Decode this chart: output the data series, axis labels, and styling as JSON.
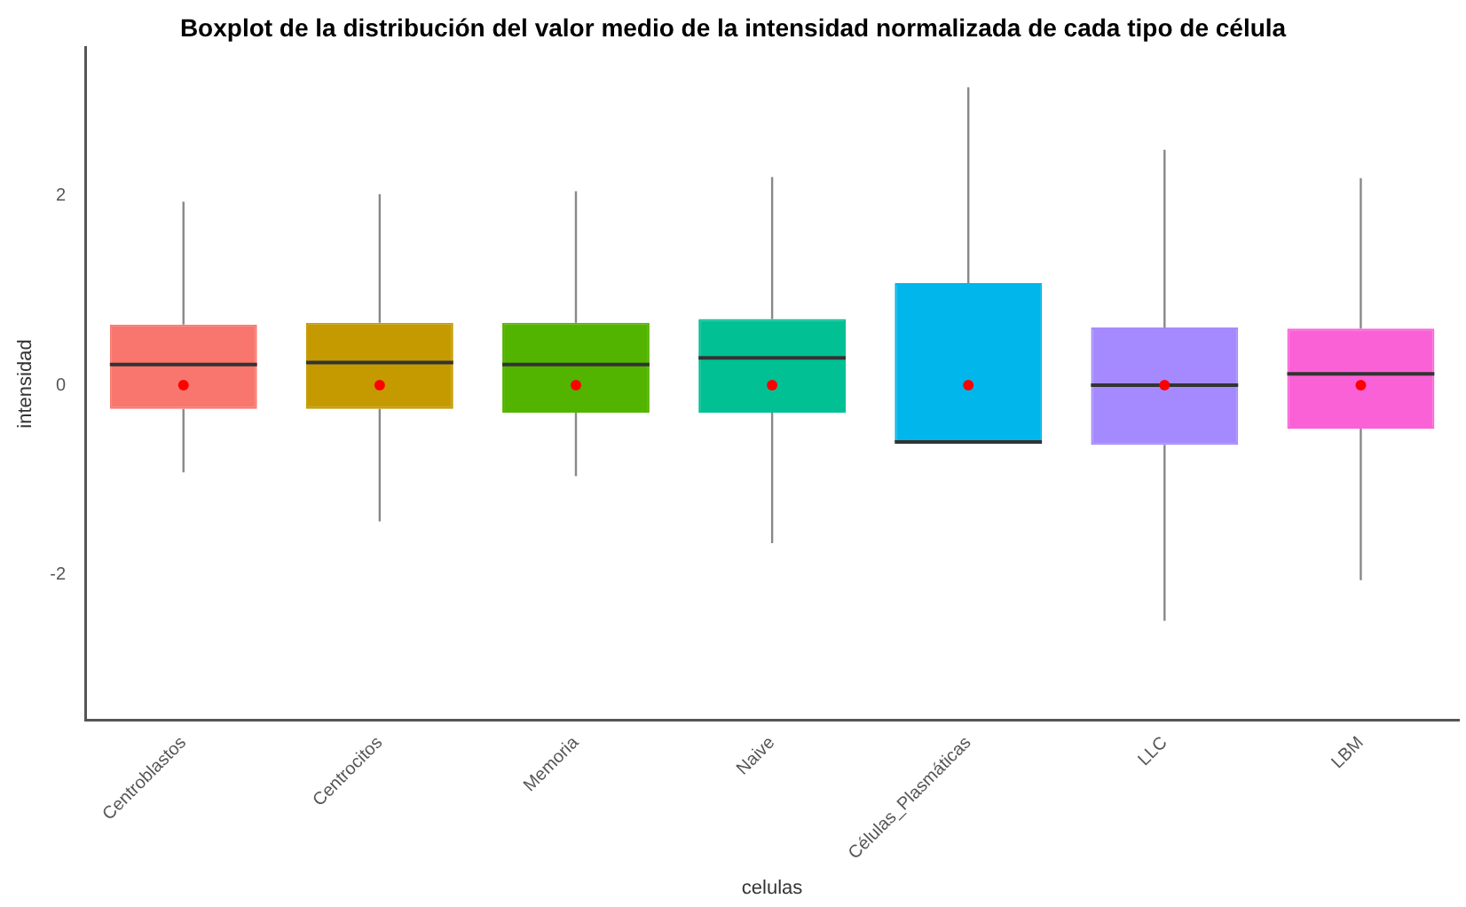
{
  "chart_data": {
    "type": "box",
    "title": "Boxplot de la distribución del valor medio de la intensidad normalizada de cada tipo de célula",
    "xlabel": "celulas",
    "ylabel": "intensidad",
    "categories": [
      "Centroblastos",
      "Centrocitos",
      "Memoria",
      "Naive",
      "Células_Plasmáticas",
      "LLC",
      "LBM"
    ],
    "colors": [
      "#f8766d",
      "#c49a00",
      "#53b400",
      "#00c094",
      "#00b6eb",
      "#a58aff",
      "#fb61d7"
    ],
    "boxes": [
      {
        "low": -0.92,
        "q1": -0.25,
        "median": 0.22,
        "q3": 0.64,
        "high": 1.94,
        "mean": 0
      },
      {
        "low": -1.44,
        "q1": -0.25,
        "median": 0.24,
        "q3": 0.66,
        "high": 2.02,
        "mean": 0
      },
      {
        "low": -0.96,
        "q1": -0.29,
        "median": 0.22,
        "q3": 0.66,
        "high": 2.05,
        "mean": 0
      },
      {
        "low": -1.67,
        "q1": -0.29,
        "median": 0.29,
        "q3": 0.7,
        "high": 2.2,
        "mean": 0
      },
      {
        "low": -0.6,
        "q1": -0.6,
        "median": -0.6,
        "q3": 1.08,
        "high": 3.15,
        "mean": 0
      },
      {
        "low": -2.49,
        "q1": -0.63,
        "median": 0,
        "q3": 0.61,
        "high": 2.49,
        "mean": 0
      },
      {
        "low": -2.06,
        "q1": -0.46,
        "median": 0.12,
        "q3": 0.6,
        "high": 2.19,
        "mean": 0
      }
    ],
    "ylim": [
      -3.54,
      3.57
    ],
    "yticks": [
      -2,
      0,
      2
    ],
    "grid": false,
    "legend": false
  }
}
